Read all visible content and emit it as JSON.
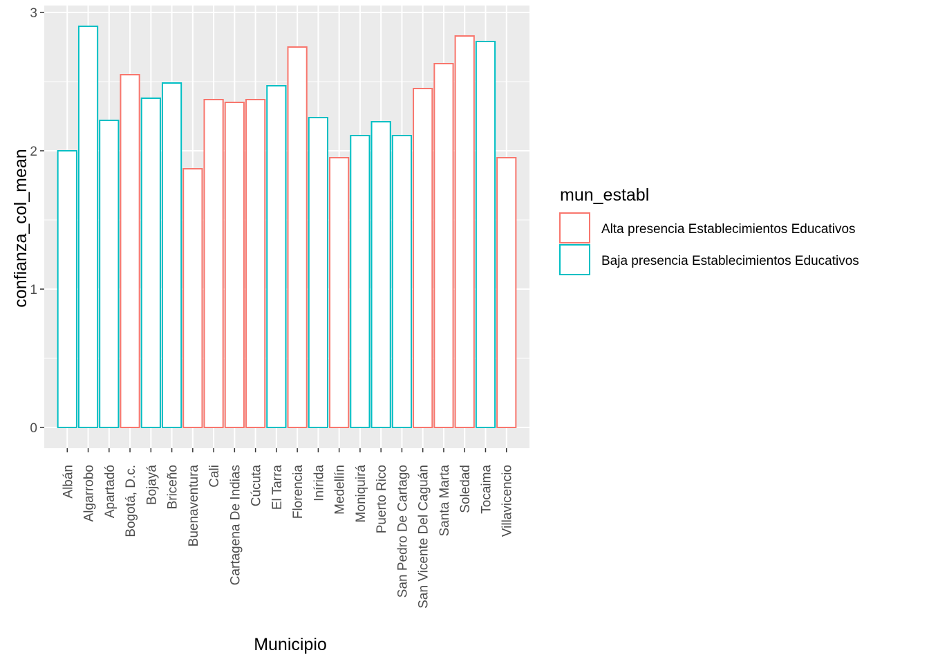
{
  "chart_data": {
    "type": "bar",
    "xlabel": "Municipio",
    "ylabel": "confianza_col_mean",
    "ylim": [
      -0.15,
      3.05
    ],
    "yticks": [
      0,
      1,
      2,
      3
    ],
    "grid": true,
    "categories": [
      "Albán",
      "Algarrobo",
      "Apartadó",
      "Bogotá, D.c.",
      "Bojayá",
      "Briceño",
      "Buenaventura",
      "Cali",
      "Cartagena De Indias",
      "Cúcuta",
      "El Tarra",
      "Florencia",
      "Inírida",
      "Medellín",
      "Moniquirá",
      "Puerto Rico",
      "San Pedro De Cartago",
      "San Vicente Del Caguán",
      "Santa Marta",
      "Soledad",
      "Tocaima",
      "Villavicencio"
    ],
    "values": [
      2.0,
      2.9,
      2.22,
      2.55,
      2.38,
      2.49,
      1.87,
      2.37,
      2.35,
      2.37,
      2.47,
      2.75,
      2.24,
      1.95,
      2.11,
      2.21,
      2.11,
      2.45,
      2.63,
      2.83,
      2.79,
      1.95
    ],
    "group": [
      "Baja",
      "Baja",
      "Baja",
      "Alta",
      "Baja",
      "Baja",
      "Alta",
      "Alta",
      "Alta",
      "Alta",
      "Baja",
      "Alta",
      "Baja",
      "Alta",
      "Baja",
      "Baja",
      "Baja",
      "Alta",
      "Alta",
      "Alta",
      "Baja",
      "Alta"
    ],
    "legend": {
      "title": "mun_establ",
      "placement": "right",
      "entries": [
        {
          "key": "Alta",
          "label": "Alta presencia Establecimientos Educativos",
          "color": "#F8766D"
        },
        {
          "key": "Baja",
          "label": "Baja presencia Establecimientos Educativos",
          "color": "#00BFC4"
        }
      ]
    },
    "panel_background": "#EBEBEB",
    "bar_fill": "#FFFFFF"
  }
}
